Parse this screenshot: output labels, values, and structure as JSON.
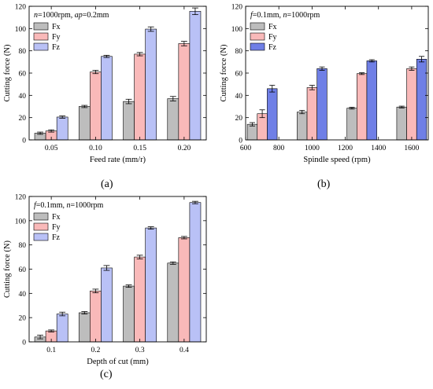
{
  "colors": {
    "Fx": "#bdbdbd",
    "Fy": "#f9b9b9",
    "Fz_light": "#b9c1f6",
    "Fz_dark": "#6f7fe6",
    "error_bar": "#000000"
  },
  "chart_data": [
    {
      "panel_label": "(a)",
      "type": "bar",
      "annotation": "n=1000rpm, ap=0.2mm",
      "annotation_parts": [
        {
          "text": "n",
          "italic": true
        },
        {
          "text": "=1000rpm, ",
          "italic": false
        },
        {
          "text": "ap",
          "italic": true
        },
        {
          "text": "=0.2mm",
          "italic": false
        }
      ],
      "xlabel": "Feed rate (mm/r)",
      "ylabel": "Cutting force (N)",
      "categories": [
        "0.05",
        "0.10",
        "0.15",
        "0.20"
      ],
      "ylim": [
        0,
        120
      ],
      "yticks": [
        0,
        20,
        40,
        60,
        80,
        100,
        120
      ],
      "legend_position": "top-left",
      "series": [
        {
          "name": "Fx",
          "color_key": "Fx",
          "values": [
            6,
            30,
            34.5,
            37
          ],
          "errors": [
            1,
            1,
            2,
            2
          ]
        },
        {
          "name": "Fy",
          "color_key": "Fy",
          "values": [
            8,
            61,
            77,
            86.5
          ],
          "errors": [
            1,
            1.5,
            1.5,
            2
          ]
        },
        {
          "name": "Fz",
          "color_key": "Fz_light",
          "values": [
            20.5,
            75,
            99.5,
            115.5
          ],
          "errors": [
            1,
            1,
            2,
            3
          ]
        }
      ]
    },
    {
      "panel_label": "(b)",
      "type": "bar",
      "annotation": "f=0.1mm, n=1000rpm",
      "annotation_parts": [
        {
          "text": "f",
          "italic": true
        },
        {
          "text": "=0.1mm, ",
          "italic": false
        },
        {
          "text": "n",
          "italic": true
        },
        {
          "text": "=1000rpm",
          "italic": false
        }
      ],
      "xlabel": "Spindle speed (rpm)",
      "ylabel": "Cutting force (N)",
      "x_numeric": true,
      "xlim": [
        600,
        1700
      ],
      "xticks": [
        600,
        800,
        1000,
        1200,
        1400,
        1600
      ],
      "group_centers": [
        700,
        1000,
        1300,
        1600
      ],
      "bar_width": 60,
      "ylim": [
        0,
        120
      ],
      "yticks": [
        0,
        20,
        40,
        60,
        80,
        100,
        120
      ],
      "legend_position": "top-left",
      "series": [
        {
          "name": "Fx",
          "color_key": "Fx",
          "values": [
            14,
            25,
            28.5,
            29.5
          ],
          "errors": [
            1.5,
            1.5,
            0.8,
            0.8
          ]
        },
        {
          "name": "Fy",
          "color_key": "Fy",
          "values": [
            23.5,
            47,
            59.5,
            64
          ],
          "errors": [
            3.5,
            2,
            0.8,
            1.5
          ]
        },
        {
          "name": "Fz",
          "color_key": "Fz_dark",
          "values": [
            46,
            64,
            71,
            72.5
          ],
          "errors": [
            3,
            1.5,
            1,
            2.5
          ]
        }
      ]
    },
    {
      "panel_label": "(c)",
      "type": "bar",
      "annotation": "f=0.1mm, n=1000rpm",
      "annotation_parts": [
        {
          "text": "f",
          "italic": true
        },
        {
          "text": "=0.1mm, ",
          "italic": false
        },
        {
          "text": "n",
          "italic": true
        },
        {
          "text": "=1000rpm",
          "italic": false
        }
      ],
      "xlabel": "Depth of cut (mm)",
      "ylabel": "Cutting force (N)",
      "categories": [
        "0.1",
        "0.2",
        "0.3",
        "0.4"
      ],
      "ylim": [
        0,
        120
      ],
      "yticks": [
        0,
        20,
        40,
        60,
        80,
        100,
        120
      ],
      "legend_position": "top-left",
      "series": [
        {
          "name": "Fx",
          "color_key": "Fx",
          "values": [
            4,
            24,
            46,
            65
          ],
          "errors": [
            1.5,
            1,
            1,
            1
          ]
        },
        {
          "name": "Fy",
          "color_key": "Fy",
          "values": [
            9,
            42,
            70,
            86
          ],
          "errors": [
            0.8,
            1.5,
            1.5,
            1
          ]
        },
        {
          "name": "Fz",
          "color_key": "Fz_light",
          "values": [
            23,
            61,
            94,
            115
          ],
          "errors": [
            1.5,
            2,
            1,
            1
          ]
        }
      ]
    }
  ]
}
